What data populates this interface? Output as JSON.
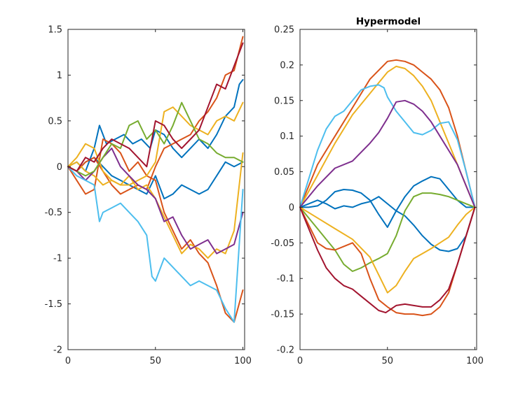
{
  "figure": {
    "background": "#ffffff",
    "axis_color": "#262626"
  },
  "chart_data": [
    {
      "type": "line",
      "title": "",
      "xlabel": "",
      "ylabel": "",
      "xlim": [
        0,
        101
      ],
      "ylim": [
        -2,
        1.5
      ],
      "xticks": [
        0,
        50,
        100
      ],
      "yticks": [
        -2,
        -1.5,
        -1,
        -0.5,
        0,
        0.5,
        1,
        1.5
      ],
      "xtick_labels": [
        "0",
        "50",
        "100"
      ],
      "ytick_labels": [
        "-2",
        "-1.5",
        "-1",
        "-0.5",
        "0",
        "0.5",
        "1",
        "1.5"
      ],
      "grid": false,
      "legend": "none",
      "series": [
        {
          "color": "#0072BD",
          "x": [
            0,
            5,
            10,
            15,
            18,
            22,
            27,
            32,
            37,
            42,
            47,
            50,
            55,
            60,
            65,
            70,
            75,
            80,
            85,
            90,
            95,
            98,
            100
          ],
          "y": [
            0,
            0.05,
            -0.05,
            0.2,
            0.45,
            0.25,
            0.3,
            0.35,
            0.25,
            0.3,
            0.2,
            0.4,
            0.35,
            0.2,
            0.1,
            0.2,
            0.3,
            0.2,
            0.35,
            0.55,
            0.65,
            0.9,
            0.95
          ]
        },
        {
          "color": "#0072BD",
          "x": [
            0,
            5,
            10,
            15,
            20,
            25,
            30,
            35,
            40,
            45,
            50,
            55,
            60,
            65,
            70,
            75,
            80,
            85,
            90,
            95,
            100
          ],
          "y": [
            0,
            -0.05,
            0.05,
            0.1,
            0.0,
            -0.1,
            -0.15,
            -0.2,
            -0.25,
            -0.3,
            -0.1,
            -0.35,
            -0.3,
            -0.2,
            -0.25,
            -0.3,
            -0.25,
            -0.1,
            0.05,
            0.0,
            0.05
          ]
        },
        {
          "color": "#D95319",
          "x": [
            0,
            5,
            10,
            15,
            20,
            25,
            30,
            35,
            40,
            45,
            50,
            55,
            60,
            65,
            70,
            75,
            80,
            85,
            90,
            95,
            100
          ],
          "y": [
            0,
            -0.15,
            -0.3,
            -0.25,
            0.3,
            0.25,
            0.15,
            -0.05,
            0.05,
            -0.1,
            -0.15,
            -0.5,
            -0.7,
            -0.9,
            -0.8,
            -0.95,
            -1.05,
            -1.3,
            -1.6,
            -1.7,
            -1.35
          ]
        },
        {
          "color": "#D95319",
          "x": [
            0,
            5,
            10,
            15,
            20,
            25,
            30,
            35,
            40,
            45,
            50,
            55,
            60,
            65,
            70,
            75,
            80,
            85,
            90,
            95,
            100
          ],
          "y": [
            0,
            -0.05,
            0.05,
            0.1,
            -0.05,
            -0.2,
            -0.3,
            -0.25,
            -0.2,
            -0.25,
            0.0,
            0.2,
            0.25,
            0.3,
            0.35,
            0.5,
            0.6,
            0.75,
            1.0,
            1.05,
            1.42
          ]
        },
        {
          "color": "#EDB120",
          "x": [
            0,
            5,
            10,
            15,
            20,
            25,
            30,
            35,
            40,
            45,
            50,
            55,
            60,
            65,
            70,
            75,
            80,
            85,
            90,
            95,
            100
          ],
          "y": [
            0,
            0.1,
            0.25,
            0.2,
            -0.05,
            -0.15,
            -0.2,
            -0.1,
            -0.25,
            -0.2,
            -0.35,
            -0.55,
            -0.75,
            -0.95,
            -0.85,
            -0.9,
            -1.0,
            -0.9,
            -0.95,
            -0.7,
            0.15
          ]
        },
        {
          "color": "#EDB120",
          "x": [
            0,
            5,
            10,
            15,
            20,
            25,
            30,
            35,
            40,
            45,
            50,
            55,
            60,
            65,
            70,
            75,
            80,
            85,
            90,
            95,
            100
          ],
          "y": [
            0,
            0.05,
            -0.05,
            -0.1,
            -0.2,
            -0.15,
            -0.2,
            -0.2,
            -0.15,
            -0.1,
            0.05,
            0.6,
            0.65,
            0.55,
            0.45,
            0.4,
            0.35,
            0.5,
            0.55,
            0.5,
            0.7
          ]
        },
        {
          "color": "#7E2F8E",
          "x": [
            0,
            5,
            10,
            15,
            20,
            25,
            30,
            35,
            40,
            45,
            50,
            55,
            60,
            65,
            70,
            75,
            80,
            85,
            90,
            95,
            100
          ],
          "y": [
            0,
            -0.05,
            -0.15,
            -0.05,
            0.1,
            0.2,
            0.0,
            -0.1,
            -0.2,
            -0.25,
            -0.35,
            -0.6,
            -0.55,
            -0.75,
            -0.9,
            -0.85,
            -0.8,
            -0.95,
            -0.9,
            -0.85,
            -0.5
          ]
        },
        {
          "color": "#77AC30",
          "x": [
            0,
            5,
            10,
            15,
            20,
            25,
            30,
            35,
            40,
            45,
            50,
            55,
            60,
            65,
            70,
            75,
            80,
            85,
            90,
            95,
            100
          ],
          "y": [
            0,
            -0.05,
            -0.1,
            -0.05,
            0.1,
            0.25,
            0.2,
            0.45,
            0.5,
            0.3,
            0.4,
            0.25,
            0.45,
            0.7,
            0.5,
            0.3,
            0.25,
            0.15,
            0.1,
            0.1,
            0.05
          ]
        },
        {
          "color": "#4DBEEE",
          "x": [
            0,
            5,
            10,
            15,
            18,
            20,
            25,
            30,
            35,
            40,
            45,
            48,
            50,
            55,
            60,
            65,
            70,
            75,
            80,
            85,
            90,
            95,
            100
          ],
          "y": [
            0,
            -0.1,
            -0.15,
            -0.2,
            -0.6,
            -0.5,
            -0.45,
            -0.4,
            -0.5,
            -0.6,
            -0.75,
            -1.2,
            -1.25,
            -1.0,
            -1.1,
            -1.2,
            -1.3,
            -1.25,
            -1.3,
            -1.35,
            -1.55,
            -1.7,
            -0.25
          ]
        },
        {
          "color": "#A2142F",
          "x": [
            0,
            5,
            10,
            15,
            20,
            25,
            30,
            35,
            40,
            45,
            50,
            55,
            60,
            65,
            70,
            75,
            80,
            85,
            90,
            95,
            100
          ],
          "y": [
            0,
            -0.05,
            0.1,
            0.05,
            0.2,
            0.3,
            0.25,
            0.2,
            0.1,
            0.0,
            0.5,
            0.45,
            0.3,
            0.2,
            0.3,
            0.4,
            0.65,
            0.9,
            0.85,
            1.1,
            1.35
          ]
        }
      ]
    },
    {
      "type": "line",
      "title": "Hypermodel",
      "xlabel": "",
      "ylabel": "",
      "xlim": [
        0,
        101
      ],
      "ylim": [
        -0.2,
        0.25
      ],
      "xticks": [
        0,
        50,
        100
      ],
      "yticks": [
        -0.2,
        -0.15,
        -0.1,
        -0.05,
        0,
        0.05,
        0.1,
        0.15,
        0.2,
        0.25
      ],
      "xtick_labels": [
        "0",
        "50",
        "100"
      ],
      "ytick_labels": [
        "-0.2",
        "-0.15",
        "-0.1",
        "-0.05",
        "0",
        "0.05",
        "0.1",
        "0.15",
        "0.2",
        "0.25"
      ],
      "grid": false,
      "legend": "none",
      "series": [
        {
          "color": "#D95319",
          "x": [
            0,
            10,
            20,
            30,
            40,
            50,
            55,
            60,
            65,
            70,
            75,
            80,
            85,
            90,
            95,
            100
          ],
          "y": [
            0,
            0.06,
            0.1,
            0.14,
            0.18,
            0.205,
            0.207,
            0.205,
            0.2,
            0.19,
            0.18,
            0.165,
            0.14,
            0.1,
            0.05,
            0
          ]
        },
        {
          "color": "#EDB120",
          "x": [
            0,
            10,
            20,
            30,
            40,
            50,
            55,
            60,
            65,
            70,
            75,
            80,
            85,
            90,
            95,
            100
          ],
          "y": [
            0,
            0.045,
            0.09,
            0.13,
            0.16,
            0.19,
            0.198,
            0.195,
            0.185,
            0.17,
            0.15,
            0.12,
            0.09,
            0.06,
            0.03,
            0
          ]
        },
        {
          "color": "#4DBEEE",
          "x": [
            0,
            5,
            10,
            15,
            20,
            25,
            30,
            35,
            40,
            45,
            48,
            50,
            55,
            60,
            65,
            70,
            75,
            80,
            85,
            90,
            95,
            100
          ],
          "y": [
            0,
            0.04,
            0.08,
            0.11,
            0.128,
            0.135,
            0.15,
            0.165,
            0.17,
            0.172,
            0.168,
            0.155,
            0.135,
            0.12,
            0.105,
            0.102,
            0.108,
            0.118,
            0.12,
            0.095,
            0.05,
            0
          ]
        },
        {
          "color": "#7E2F8E",
          "x": [
            0,
            10,
            20,
            30,
            40,
            45,
            50,
            55,
            60,
            65,
            70,
            75,
            80,
            85,
            90,
            95,
            100
          ],
          "y": [
            0,
            0.03,
            0.055,
            0.065,
            0.09,
            0.105,
            0.125,
            0.148,
            0.15,
            0.145,
            0.135,
            0.12,
            0.1,
            0.08,
            0.06,
            0.03,
            0
          ]
        },
        {
          "color": "#0072BD",
          "x": [
            0,
            5,
            10,
            15,
            20,
            25,
            30,
            35,
            40,
            45,
            50,
            55,
            60,
            65,
            70,
            75,
            80,
            85,
            90,
            95,
            100
          ],
          "y": [
            0,
            0.0,
            0.002,
            0.01,
            0.022,
            0.025,
            0.024,
            0.02,
            0.01,
            -0.01,
            -0.028,
            -0.005,
            0.015,
            0.03,
            0.037,
            0.043,
            0.04,
            0.025,
            0.01,
            0.0,
            0
          ]
        },
        {
          "color": "#0072BD",
          "x": [
            0,
            5,
            10,
            15,
            20,
            25,
            30,
            35,
            40,
            45,
            50,
            55,
            60,
            65,
            70,
            75,
            80,
            85,
            90,
            95,
            100
          ],
          "y": [
            0,
            0.005,
            0.01,
            0.005,
            -0.002,
            0.002,
            0.0,
            0.005,
            0.008,
            0.015,
            0.005,
            -0.005,
            -0.012,
            -0.025,
            -0.04,
            -0.052,
            -0.06,
            -0.062,
            -0.058,
            -0.04,
            0
          ]
        },
        {
          "color": "#77AC30",
          "x": [
            0,
            5,
            10,
            15,
            20,
            25,
            30,
            35,
            40,
            45,
            50,
            55,
            60,
            65,
            70,
            75,
            80,
            85,
            90,
            95,
            100
          ],
          "y": [
            0,
            -0.015,
            -0.03,
            -0.045,
            -0.06,
            -0.08,
            -0.09,
            -0.085,
            -0.078,
            -0.072,
            -0.065,
            -0.04,
            -0.005,
            0.015,
            0.02,
            0.02,
            0.018,
            0.015,
            0.01,
            0.005,
            0
          ]
        },
        {
          "color": "#EDB120",
          "x": [
            0,
            10,
            20,
            30,
            40,
            45,
            50,
            55,
            60,
            65,
            70,
            75,
            80,
            85,
            90,
            95,
            100
          ],
          "y": [
            0,
            -0.015,
            -0.03,
            -0.045,
            -0.07,
            -0.095,
            -0.12,
            -0.11,
            -0.09,
            -0.072,
            -0.065,
            -0.058,
            -0.05,
            -0.042,
            -0.025,
            -0.01,
            0
          ]
        },
        {
          "color": "#D95319",
          "x": [
            0,
            5,
            10,
            15,
            20,
            25,
            30,
            35,
            40,
            45,
            50,
            55,
            60,
            65,
            70,
            75,
            80,
            85,
            90,
            95,
            100
          ],
          "y": [
            0,
            -0.025,
            -0.05,
            -0.058,
            -0.06,
            -0.055,
            -0.05,
            -0.065,
            -0.1,
            -0.13,
            -0.14,
            -0.148,
            -0.15,
            -0.15,
            -0.152,
            -0.15,
            -0.14,
            -0.12,
            -0.08,
            -0.04,
            0
          ]
        },
        {
          "color": "#A2142F",
          "x": [
            0,
            5,
            10,
            15,
            20,
            25,
            30,
            35,
            40,
            45,
            49,
            55,
            60,
            65,
            70,
            75,
            80,
            85,
            90,
            95,
            100
          ],
          "y": [
            0,
            -0.03,
            -0.06,
            -0.085,
            -0.1,
            -0.11,
            -0.115,
            -0.125,
            -0.135,
            -0.145,
            -0.148,
            -0.138,
            -0.136,
            -0.138,
            -0.14,
            -0.14,
            -0.13,
            -0.115,
            -0.08,
            -0.04,
            0
          ]
        }
      ]
    }
  ]
}
